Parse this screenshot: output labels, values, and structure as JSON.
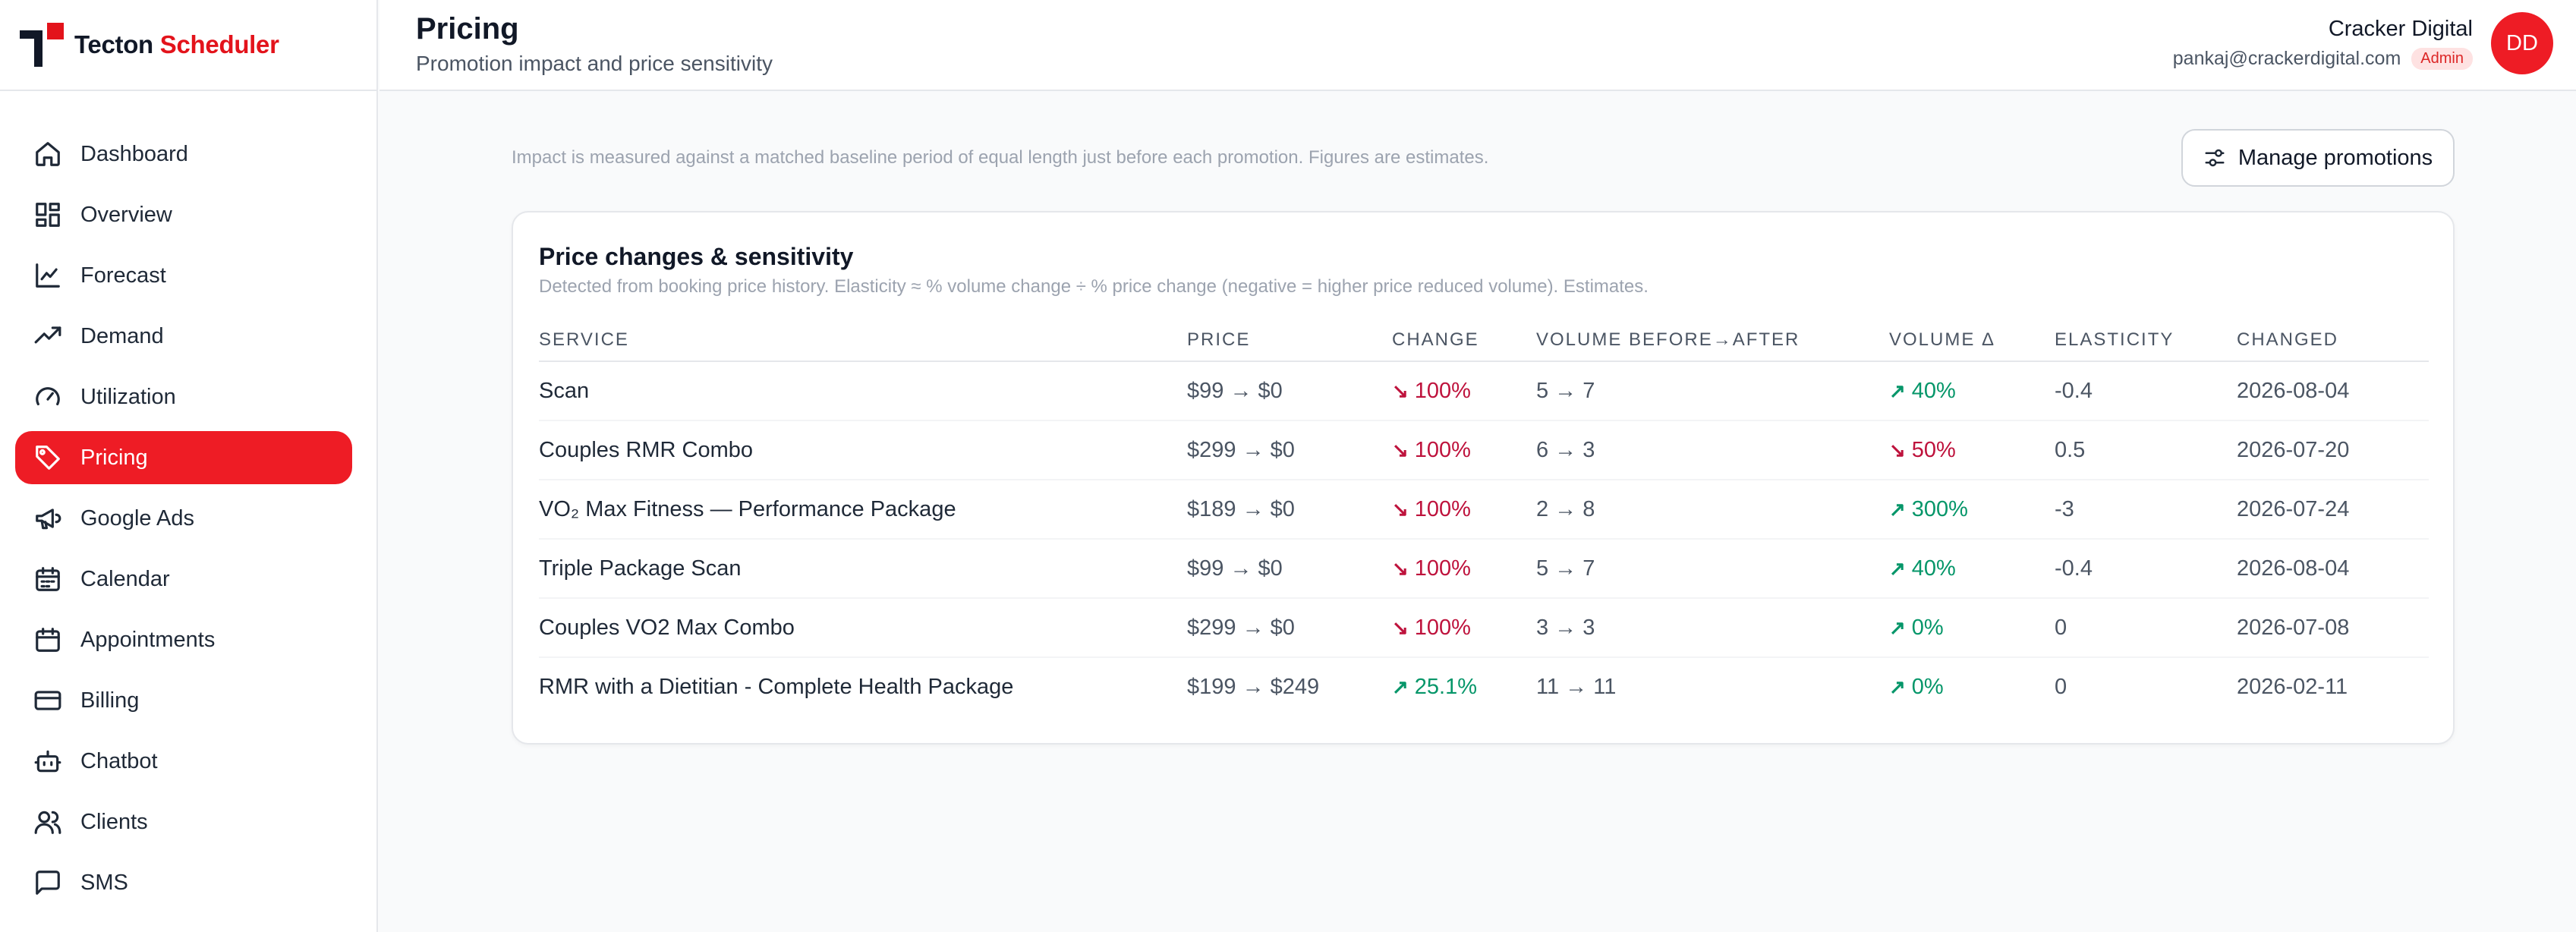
{
  "brand": {
    "name_part1": "Tecton",
    "name_part2": "Scheduler"
  },
  "sidebar": {
    "items": [
      {
        "label": "Dashboard",
        "icon": "home-icon"
      },
      {
        "label": "Overview",
        "icon": "grid-icon"
      },
      {
        "label": "Forecast",
        "icon": "line-chart-icon"
      },
      {
        "label": "Demand",
        "icon": "trending-up-icon"
      },
      {
        "label": "Utilization",
        "icon": "gauge-icon"
      },
      {
        "label": "Pricing",
        "icon": "tag-icon",
        "active": true
      },
      {
        "label": "Google Ads",
        "icon": "megaphone-icon"
      },
      {
        "label": "Calendar",
        "icon": "calendar-days-icon"
      },
      {
        "label": "Appointments",
        "icon": "calendar-icon"
      },
      {
        "label": "Billing",
        "icon": "credit-card-icon"
      },
      {
        "label": "Chatbot",
        "icon": "bot-icon"
      },
      {
        "label": "Clients",
        "icon": "users-icon"
      },
      {
        "label": "SMS",
        "icon": "message-square-icon"
      }
    ]
  },
  "header": {
    "title": "Pricing",
    "subtitle": "Promotion impact and price sensitivity"
  },
  "user": {
    "name": "Cracker Digital",
    "email": "pankaj@crackerdigital.com",
    "role": "Admin",
    "initials": "DD"
  },
  "main": {
    "note": "Impact is measured against a matched baseline period of equal length just before each promotion. Figures are estimates.",
    "manage_button": "Manage promotions"
  },
  "card": {
    "title": "Price changes & sensitivity",
    "description": "Detected from booking price history. Elasticity ≈ % volume change ÷ % price change (negative = higher price reduced volume). Estimates.",
    "columns": [
      "SERVICE",
      "PRICE",
      "CHANGE",
      "VOLUME BEFORE→AFTER",
      "VOLUME Δ",
      "ELASTICITY",
      "CHANGED"
    ],
    "rows": [
      {
        "service": "Scan",
        "price": "$99 → $0",
        "change": "100%",
        "change_dir": "down",
        "volume": "5 → 7",
        "volume_delta": "40%",
        "volume_dir": "up",
        "elasticity": "-0.4",
        "changed": "2026-08-04"
      },
      {
        "service": "Couples RMR Combo",
        "price": "$299 → $0",
        "change": "100%",
        "change_dir": "down",
        "volume": "6 → 3",
        "volume_delta": "50%",
        "volume_dir": "down",
        "elasticity": "0.5",
        "changed": "2026-07-20"
      },
      {
        "service": "VO₂ Max Fitness — Performance Package",
        "price": "$189 → $0",
        "change": "100%",
        "change_dir": "down",
        "volume": "2 → 8",
        "volume_delta": "300%",
        "volume_dir": "up",
        "elasticity": "-3",
        "changed": "2026-07-24"
      },
      {
        "service": "Triple Package Scan",
        "price": "$99 → $0",
        "change": "100%",
        "change_dir": "down",
        "volume": "5 → 7",
        "volume_delta": "40%",
        "volume_dir": "up",
        "elasticity": "-0.4",
        "changed": "2026-08-04"
      },
      {
        "service": "Couples VO2 Max Combo",
        "price": "$299 → $0",
        "change": "100%",
        "change_dir": "down",
        "volume": "3 → 3",
        "volume_delta": "0%",
        "volume_dir": "up",
        "elasticity": "0",
        "changed": "2026-07-08"
      },
      {
        "service": "RMR with a Dietitian - Complete Health Package",
        "price": "$199 → $249",
        "change": "25.1%",
        "change_dir": "up",
        "volume": "11 → 11",
        "volume_delta": "0%",
        "volume_dir": "up",
        "elasticity": "0",
        "changed": "2026-02-11"
      }
    ]
  },
  "colors": {
    "accent": "#ee1c25",
    "down": "#be123c",
    "up": "#059669"
  }
}
